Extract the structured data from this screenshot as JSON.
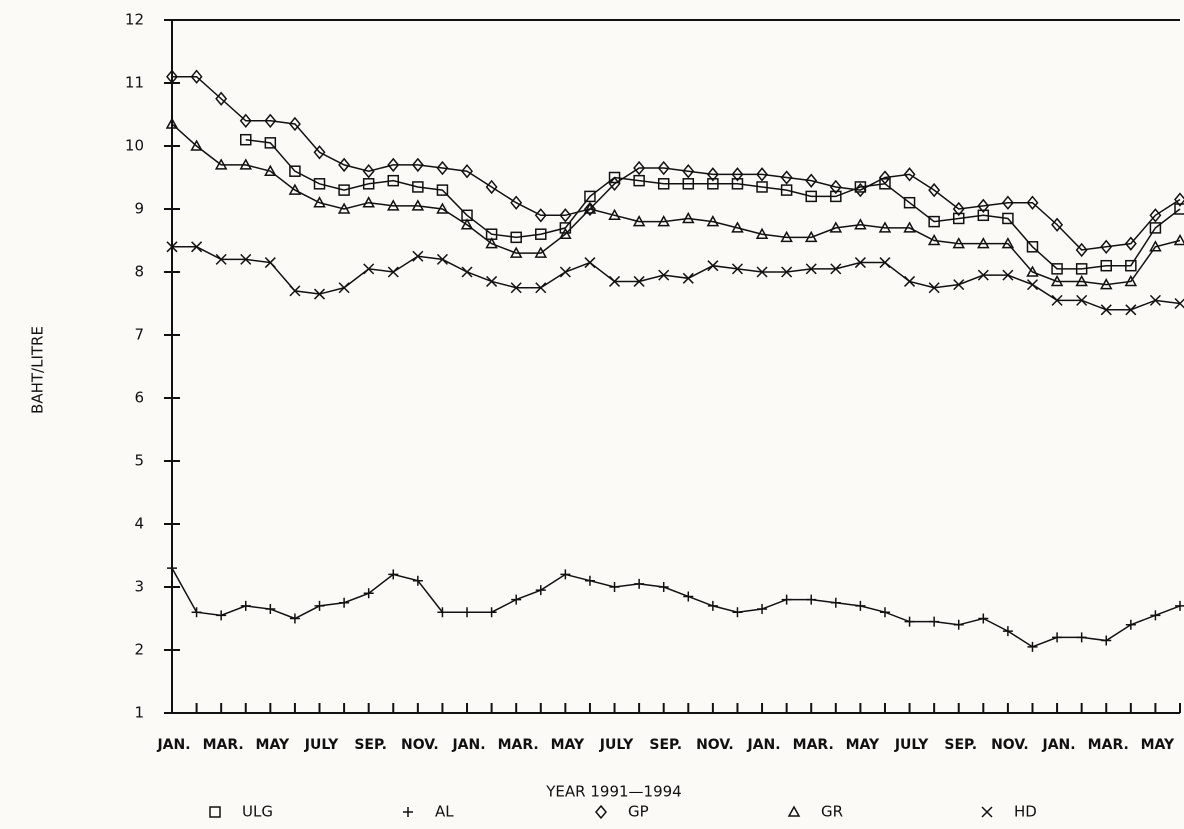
{
  "chart_data": {
    "type": "line",
    "x_label": "YEAR 1991—1994",
    "y_label": "BAHT/LITRE",
    "categories": [
      "JAN.",
      null,
      "MAR.",
      null,
      "MAY",
      null,
      "JULY",
      null,
      "SEP.",
      null,
      "NOV.",
      null,
      "JAN.",
      null,
      "MAR.",
      null,
      "MAY",
      null,
      "JULY",
      null,
      "SEP.",
      null,
      "NOV.",
      null,
      "JAN.",
      null,
      "MAR.",
      null,
      "MAY",
      null,
      "JULY",
      null,
      "SEP.",
      null,
      "NOV.",
      null,
      "JAN.",
      null,
      "MAR.",
      null,
      "MAY",
      null
    ],
    "ylim": [
      1,
      12
    ],
    "yticks": [
      1,
      2,
      3,
      4,
      5,
      6,
      7,
      8,
      9,
      10,
      11,
      12
    ],
    "series": [
      {
        "name": "ULG",
        "color": "#111111",
        "marker": "square",
        "values": [
          null,
          null,
          null,
          10.1,
          10.05,
          9.6,
          9.4,
          9.3,
          9.4,
          9.45,
          9.35,
          9.3,
          8.9,
          8.6,
          8.55,
          8.6,
          8.7,
          9.2,
          9.5,
          9.45,
          9.4,
          9.4,
          9.4,
          9.4,
          9.35,
          9.3,
          9.2,
          9.2,
          9.35,
          9.4,
          9.1,
          8.8,
          8.85,
          8.9,
          8.85,
          8.4,
          8.05,
          8.05,
          8.1,
          8.1,
          8.7,
          9.0
        ]
      },
      {
        "name": "AL",
        "color": "#111111",
        "marker": "plus",
        "values": [
          3.3,
          2.6,
          2.55,
          2.7,
          2.65,
          2.5,
          2.7,
          2.75,
          2.9,
          3.2,
          3.1,
          2.6,
          2.6,
          2.6,
          2.8,
          2.95,
          3.2,
          3.1,
          3.0,
          3.05,
          3.0,
          2.85,
          2.7,
          2.6,
          2.65,
          2.8,
          2.8,
          2.75,
          2.7,
          2.6,
          2.45,
          2.45,
          2.4,
          2.5,
          2.3,
          2.05,
          2.2,
          2.2,
          2.15,
          2.4,
          2.55,
          2.7
        ]
      },
      {
        "name": "GP",
        "color": "#111111",
        "marker": "diamond",
        "values": [
          11.1,
          11.1,
          10.75,
          10.4,
          10.4,
          10.35,
          9.9,
          9.7,
          9.6,
          9.7,
          9.7,
          9.65,
          9.6,
          9.35,
          9.1,
          8.9,
          8.9,
          9.0,
          9.4,
          9.65,
          9.65,
          9.6,
          9.55,
          9.55,
          9.55,
          9.5,
          9.45,
          9.35,
          9.3,
          9.5,
          9.55,
          9.3,
          9.0,
          9.05,
          9.1,
          9.1,
          8.75,
          8.35,
          8.4,
          8.45,
          8.9,
          9.15
        ]
      },
      {
        "name": "GR",
        "color": "#111111",
        "marker": "triangle",
        "values": [
          10.35,
          10.0,
          9.7,
          9.7,
          9.6,
          9.3,
          9.1,
          9.0,
          9.1,
          9.05,
          9.05,
          9.0,
          8.75,
          8.45,
          8.3,
          8.3,
          8.6,
          9.0,
          8.9,
          8.8,
          8.8,
          8.85,
          8.8,
          8.7,
          8.6,
          8.55,
          8.55,
          8.7,
          8.75,
          8.7,
          8.7,
          8.5,
          8.45,
          8.45,
          8.45,
          8.0,
          7.85,
          7.85,
          7.8,
          7.85,
          8.4,
          8.5
        ]
      },
      {
        "name": "HD",
        "color": "#111111",
        "marker": "x",
        "values": [
          8.4,
          8.4,
          8.2,
          8.2,
          8.15,
          7.7,
          7.65,
          7.75,
          8.05,
          8.0,
          8.25,
          8.2,
          8.0,
          7.85,
          7.75,
          7.75,
          8.0,
          8.15,
          7.85,
          7.85,
          7.95,
          7.9,
          8.1,
          8.05,
          8.0,
          8.0,
          8.05,
          8.05,
          8.15,
          8.15,
          7.85,
          7.75,
          7.8,
          7.95,
          7.95,
          7.8,
          7.55,
          7.55,
          7.4,
          7.4,
          7.55,
          7.5
        ]
      }
    ]
  }
}
